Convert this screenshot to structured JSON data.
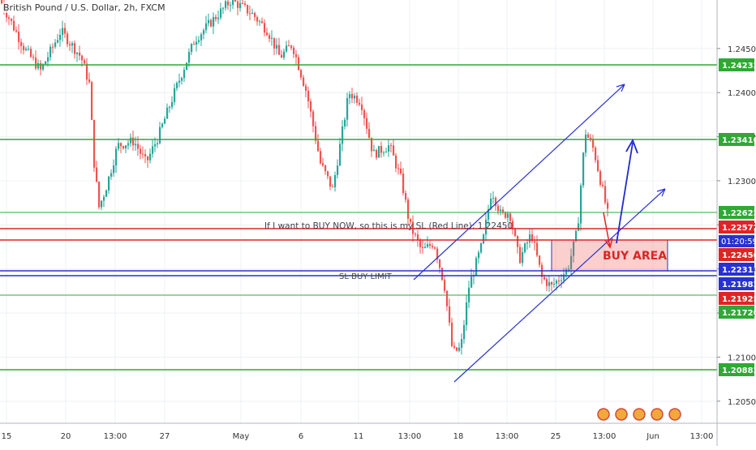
{
  "symbol_title": "British Pound / U.S. Dollar, 2h, FXCM",
  "chart_data": {
    "type": "candlestick",
    "title": "British Pound / U.S. Dollar, 2h, FXCM",
    "y_range": [
      1.2025,
      1.2505
    ],
    "grid": true,
    "price_ticks": [
      "1.24500",
      "1.24000",
      "1.23500",
      "1.23000",
      "1.22500",
      "1.22000",
      "1.21500",
      "1.21000",
      "1.20500"
    ],
    "time_ticks": [
      "15",
      "20",
      "13:00",
      "27",
      "May",
      "6",
      "11",
      "13:00",
      "18",
      "13:00",
      "25",
      "13:00",
      "Jun",
      "13:00"
    ],
    "horizontal_levels": [
      {
        "price": 1.24233,
        "label": "1.24233",
        "kind": "resistance",
        "color": "#2fa836"
      },
      {
        "price": 1.2341,
        "label": "1.23410",
        "kind": "resistance",
        "color": "#2fa836"
      },
      {
        "price": 1.22622,
        "label": "1.22622",
        "kind": "level",
        "color": "#2fa836"
      },
      {
        "price": 1.22572,
        "label": "1.22572",
        "kind": "level",
        "color": "#e02424"
      },
      {
        "price": 1.2245,
        "label": "1.22450",
        "kind": "stop-loss",
        "color": "#e02424"
      },
      {
        "price": 1.22313,
        "label": "1.22313",
        "kind": "buy-area-top",
        "color": "#2832d2"
      },
      {
        "price": 1.21982,
        "label": "1.21982",
        "kind": "buy-limit",
        "color": "#2832d2"
      },
      {
        "price": 1.21925,
        "label": "1.21925",
        "kind": "level",
        "color": "#e02424"
      },
      {
        "price": 1.2172,
        "label": "1.21720",
        "kind": "support",
        "color": "#2fa836"
      },
      {
        "price": 1.20882,
        "label": "1.20882",
        "kind": "support",
        "color": "#2fa836"
      }
    ],
    "countdown": "01:20:59",
    "annotations": {
      "sl_note": "If I want to BUY NOW, so this is my SL (Red Line): 1.22450",
      "buy_limit": "SL BUY LIMIT",
      "buy_area": "BUY AREA"
    },
    "colors": {
      "up": "#26a69a",
      "down": "#ef5350",
      "green_line": "#2fa836",
      "red_line": "#e02424",
      "blue_line": "#2832d2"
    }
  }
}
